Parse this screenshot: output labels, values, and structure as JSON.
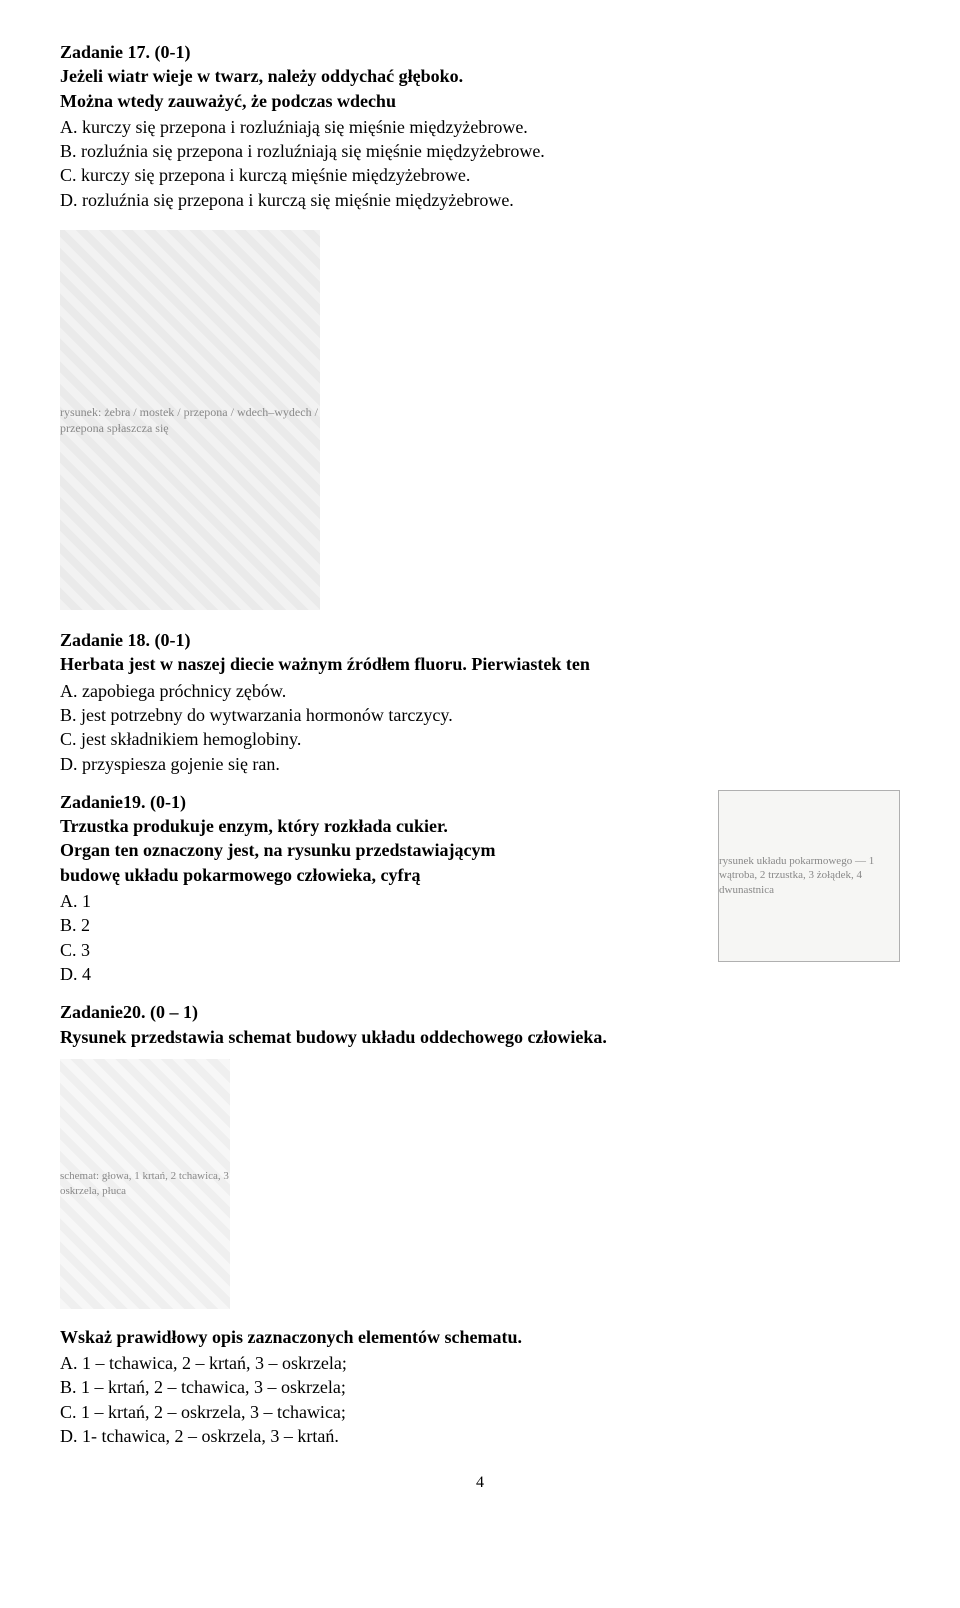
{
  "task17": {
    "header": "Zadanie 17. (0-1)",
    "question_line1": "Jeżeli wiatr wieje w twarz, należy oddychać głęboko.",
    "question_line2": "Można wtedy zauważyć, że podczas wdechu",
    "options": {
      "A": "A. kurczy się przepona i rozluźniają się mięśnie międzyżebrowe.",
      "B": "B. rozluźnia się przepona i rozluźniają się mięśnie międzyżebrowe.",
      "C": "C. kurczy się przepona i kurczą mięśnie międzyżebrowe.",
      "D": "D. rozluźnia się przepona i kurczą się mięśnie międzyżebrowe."
    },
    "figure_alt": "rysunek: żebra / mostek / przepona / wdech–wydech / przepona spłaszcza się"
  },
  "task18": {
    "header": "Zadanie 18. (0-1)",
    "question": "Herbata jest w naszej diecie ważnym źródłem fluoru. Pierwiastek ten",
    "options": {
      "A": "A. zapobiega próchnicy zębów.",
      "B": "B. jest potrzebny do wytwarzania hormonów tarczycy.",
      "C": "C. jest składnikiem hemoglobiny.",
      "D": "D. przyspiesza gojenie się ran."
    }
  },
  "task19": {
    "header": "Zadanie19. (0-1)",
    "question_line1": "Trzustka produkuje enzym, który rozkłada cukier.",
    "question_line2": "Organ ten oznaczony jest, na rysunku przedstawiającym",
    "question_line3": "budowę układu pokarmowego człowieka, cyfrą",
    "options": {
      "A": "A. 1",
      "B": "B. 2",
      "C": "C. 3",
      "D": "D. 4"
    },
    "figure_alt": "rysunek układu pokarmowego — 1 wątroba, 2 trzustka, 3 żołądek, 4 dwunastnica"
  },
  "task20": {
    "header": "Zadanie20. (0 – 1)",
    "question": "Rysunek przedstawia schemat budowy układu oddechowego człowieka.",
    "figure_alt": "schemat: głowa, 1 krtań, 2 tchawica, 3 oskrzela, płuca",
    "sub_question": "Wskaż prawidłowy opis zaznaczonych elementów schematu.",
    "options": {
      "A": "A. 1 – tchawica, 2 – krtań, 3 – oskrzela;",
      "B": "B. 1 – krtań, 2 – tchawica, 3 – oskrzela;",
      "C": "C. 1 – krtań, 2 – oskrzela, 3 – tchawica;",
      "D": "D. 1- tchawica, 2 – oskrzela, 3 – krtań."
    }
  },
  "page_number": "4",
  "colors": {
    "text": "#000000",
    "background": "#ffffff",
    "placeholder_bg": "#f2f2f2",
    "placeholder_text": "#888888"
  },
  "typography": {
    "body_font": "Times New Roman",
    "body_size_pt": 13,
    "bold_weight": 700
  }
}
